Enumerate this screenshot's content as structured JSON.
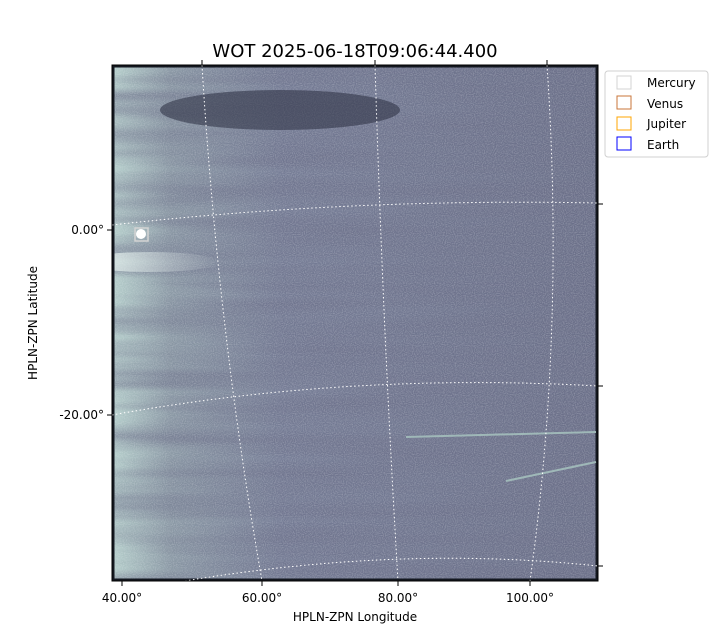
{
  "chart_data": {
    "type": "heatmap",
    "title": "WOT 2025-06-18T09:06:44.400",
    "xlabel": "HPLN-ZPN Longitude",
    "ylabel": "HPLN-ZPN Latitude",
    "x_ticks": [
      "40.00°",
      "60.00°",
      "80.00°",
      "100.00°"
    ],
    "y_ticks": [
      "0.00°",
      "-20.00°"
    ],
    "colormap": "bone",
    "grid": true,
    "legend_placement": "outside-top-right",
    "legend": [
      {
        "label": "Mercury",
        "color": "#d3d3d3"
      },
      {
        "label": "Venus",
        "color": "#c8763a"
      },
      {
        "label": "Jupiter",
        "color": "#ffa500"
      },
      {
        "label": "Earth",
        "color": "#0000ff"
      }
    ],
    "markers": [
      {
        "label": "Mercury",
        "lon": 42,
        "lat": -0.5
      }
    ]
  }
}
